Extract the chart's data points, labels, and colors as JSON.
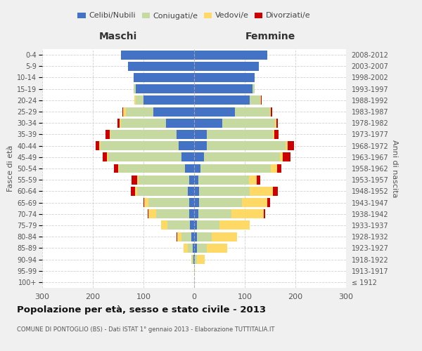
{
  "age_groups": [
    "100+",
    "95-99",
    "90-94",
    "85-89",
    "80-84",
    "75-79",
    "70-74",
    "65-69",
    "60-64",
    "55-59",
    "50-54",
    "45-49",
    "40-44",
    "35-39",
    "30-34",
    "25-29",
    "20-24",
    "15-19",
    "10-14",
    "5-9",
    "0-4"
  ],
  "birth_years": [
    "≤ 1912",
    "1913-1917",
    "1918-1922",
    "1923-1927",
    "1928-1932",
    "1933-1937",
    "1938-1942",
    "1943-1947",
    "1948-1952",
    "1953-1957",
    "1958-1962",
    "1963-1967",
    "1968-1972",
    "1973-1977",
    "1978-1982",
    "1983-1987",
    "1988-1992",
    "1993-1997",
    "1998-2002",
    "2003-2007",
    "2008-2012"
  ],
  "maschi_celibi": [
    0,
    0,
    1,
    3,
    5,
    8,
    10,
    10,
    12,
    10,
    18,
    25,
    30,
    35,
    55,
    80,
    100,
    115,
    120,
    130,
    145
  ],
  "maschi_coniugati": [
    0,
    0,
    3,
    10,
    20,
    45,
    65,
    80,
    100,
    100,
    130,
    145,
    155,
    130,
    90,
    55,
    15,
    5,
    0,
    0,
    0
  ],
  "maschi_vedovi": [
    0,
    0,
    2,
    8,
    8,
    12,
    15,
    8,
    5,
    2,
    2,
    2,
    2,
    2,
    2,
    5,
    3,
    0,
    0,
    0,
    0
  ],
  "maschi_divorziati": [
    0,
    0,
    0,
    0,
    2,
    0,
    2,
    2,
    8,
    12,
    8,
    8,
    8,
    8,
    5,
    2,
    0,
    0,
    0,
    0,
    0
  ],
  "femmine_celibi": [
    0,
    0,
    1,
    5,
    5,
    5,
    8,
    10,
    10,
    8,
    12,
    20,
    25,
    25,
    55,
    80,
    110,
    115,
    120,
    128,
    145
  ],
  "femmine_coniugati": [
    0,
    0,
    5,
    20,
    30,
    45,
    65,
    85,
    100,
    100,
    140,
    150,
    155,
    130,
    105,
    70,
    20,
    5,
    0,
    0,
    0
  ],
  "femmine_vedovi": [
    0,
    2,
    15,
    40,
    50,
    60,
    65,
    50,
    45,
    15,
    12,
    5,
    5,
    3,
    2,
    2,
    2,
    0,
    0,
    0,
    0
  ],
  "femmine_divorziati": [
    0,
    0,
    0,
    0,
    0,
    0,
    2,
    5,
    10,
    8,
    8,
    15,
    12,
    8,
    3,
    2,
    2,
    0,
    0,
    0,
    0
  ],
  "color_celibi": "#4472c4",
  "color_coniugati": "#c5d9a0",
  "color_vedovi": "#ffd966",
  "color_divorziati": "#cc0000",
  "title": "Popolazione per età, sesso e stato civile - 2013",
  "subtitle": "COMUNE DI PONTOGLIO (BS) - Dati ISTAT 1° gennaio 2013 - Elaborazione TUTTITALIA.IT",
  "xlabel_left": "Maschi",
  "xlabel_right": "Femmine",
  "ylabel_left": "Fasce di età",
  "ylabel_right": "Anni di nascita",
  "xlim": 300,
  "bg_color": "#f0f0f0",
  "plot_bg": "#ffffff",
  "grid_color": "#cccccc"
}
